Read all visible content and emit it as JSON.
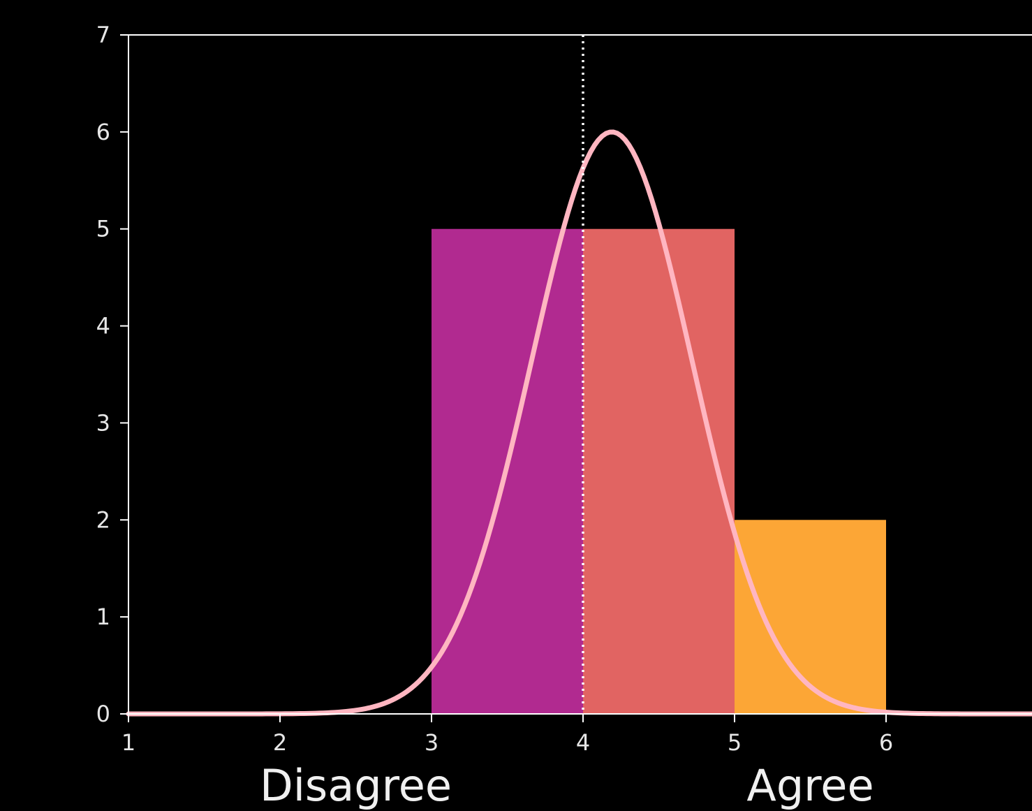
{
  "chart_data": {
    "type": "bar",
    "bars": [
      {
        "x0": 3,
        "x1": 4,
        "value": 5,
        "color": "#B12A90"
      },
      {
        "x0": 4,
        "x1": 5,
        "value": 5,
        "color": "#E16462"
      },
      {
        "x0": 5,
        "x1": 6,
        "value": 2,
        "color": "#FCA636"
      }
    ],
    "curve": {
      "type": "normal",
      "mean": 4.19,
      "sd": 0.53,
      "peak": 6.0,
      "color": "#FFB6C1"
    },
    "mean_line": {
      "x": 4,
      "style": "dotted",
      "color": "#FFFFFF"
    },
    "xlim": [
      1,
      7
    ],
    "ylim": [
      0,
      7
    ],
    "x_ticks": [
      "1",
      "2",
      "3",
      "4",
      "5",
      "6"
    ],
    "y_ticks": [
      "0",
      "1",
      "2",
      "3",
      "4",
      "5",
      "6",
      "7"
    ],
    "category_labels": [
      {
        "text": "Disagree",
        "x": 2.5
      },
      {
        "text": "Agree",
        "x": 5.5
      }
    ],
    "axis_color": "#FFFFFF",
    "background": "#000000"
  }
}
